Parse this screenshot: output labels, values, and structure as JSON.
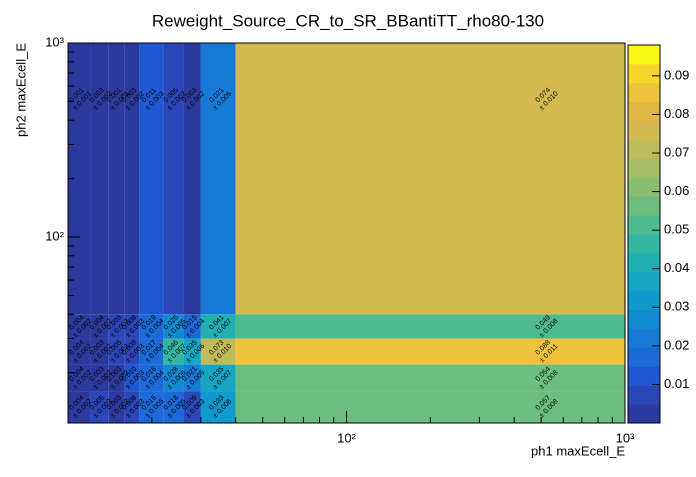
{
  "chart_data": {
    "type": "heatmap",
    "title": "Reweight_Source_CR_to_SR_BBantiTT_rho80-130",
    "x_label": "ph1 maxEcell_E",
    "y_label": "ph2 maxEcell_E",
    "xlog": true,
    "ylog": true,
    "xlim": [
      10,
      1000
    ],
    "ylim": [
      11,
      1000
    ],
    "xticks": [
      {
        "value": 100,
        "label": "10²"
      },
      {
        "value": 1000,
        "label": "10³"
      }
    ],
    "yticks": [
      {
        "value": 100,
        "label": "10²"
      },
      {
        "value": 1000,
        "label": "10³"
      }
    ],
    "xbins": [
      10,
      12,
      14,
      16,
      18,
      22,
      26,
      30,
      40,
      1000
    ],
    "ybins": [
      11,
      16,
      22,
      30,
      40,
      1000
    ],
    "z": [
      [
        0.004,
        0.005,
        0.003,
        0.008,
        0.015,
        0.018,
        0.009,
        0.033,
        0.057
      ],
      [
        0.004,
        0.003,
        0.003,
        0.01,
        0.016,
        0.028,
        0.021,
        0.035,
        0.054
      ],
      [
        0.004,
        0.003,
        0.005,
        0.008,
        0.017,
        0.046,
        0.035,
        0.073,
        0.088
      ],
      [
        0.004,
        0.004,
        0.009,
        0.008,
        0.019,
        0.026,
        0.015,
        0.041,
        0.049
      ],
      [
        0.001,
        0.003,
        0.001,
        0.003,
        0.011,
        0.005,
        0.003,
        0.021,
        0.074
      ]
    ],
    "value_labels": [
      [
        "0.004",
        "0.005",
        "0.003",
        "0.008",
        "0.015",
        "0.018",
        "0.009",
        "0.033",
        "0.057"
      ],
      [
        "0.004",
        "0.003",
        "0.003",
        "0.010",
        "0.016",
        "0.028",
        "0.021",
        "0.035",
        "0.054"
      ],
      [
        "0.004",
        "0.003",
        "0.005",
        "0.008",
        "0.017",
        "0.046",
        "0.035",
        "0.073",
        "0.088"
      ],
      [
        "0.004",
        "0.004",
        "0.009",
        "0.008",
        "0.019",
        "0.026",
        "0.015",
        "0.041",
        "0.049"
      ],
      [
        "0.001",
        "0.003",
        "0.001",
        "0.003",
        "0.011",
        "0.005",
        "0.003",
        "0.021",
        "0.074"
      ]
    ],
    "errors": [
      [
        0.002,
        0.003,
        0.002,
        0.003,
        0.005,
        0.005,
        0.003,
        0.006,
        0.008
      ],
      [
        0.002,
        0.002,
        0.002,
        0.003,
        0.004,
        0.006,
        0.005,
        0.007,
        0.008
      ],
      [
        0.002,
        0.002,
        0.003,
        0.003,
        0.004,
        0.007,
        0.006,
        0.01,
        0.011
      ],
      [
        0.002,
        0.002,
        0.003,
        0.003,
        0.004,
        0.005,
        0.004,
        0.007,
        0.008
      ],
      [
        0.001,
        0.002,
        0.001,
        0.002,
        0.003,
        0.002,
        0.002,
        0.005,
        0.01
      ]
    ],
    "error_labels": [
      [
        "± 0.002",
        "± 0.003",
        "± 0.002",
        "± 0.003",
        "± 0.005",
        "± 0.005",
        "± 0.003",
        "± 0.006",
        "± 0.008"
      ],
      [
        "± 0.002",
        "± 0.002",
        "± 0.002",
        "± 0.003",
        "± 0.004",
        "± 0.006",
        "± 0.005",
        "± 0.007",
        "± 0.008"
      ],
      [
        "± 0.002",
        "± 0.002",
        "± 0.003",
        "± 0.003",
        "± 0.004",
        "± 0.007",
        "± 0.006",
        "± 0.010",
        "± 0.011"
      ],
      [
        "± 0.002",
        "± 0.002",
        "± 0.003",
        "± 0.003",
        "± 0.004",
        "± 0.005",
        "± 0.004",
        "± 0.007",
        "± 0.008"
      ],
      [
        "± 0.001",
        "± 0.002",
        "± 0.001",
        "± 0.002",
        "± 0.003",
        "± 0.002",
        "± 0.002",
        "± 0.005",
        "± 0.010"
      ]
    ],
    "zlim": [
      0,
      0.098
    ],
    "zticks": [
      0.01,
      0.02,
      0.03,
      0.04,
      0.05,
      0.06,
      0.07,
      0.08,
      0.09
    ],
    "palette": [
      "#2c3a9e",
      "#2a46b8",
      "#1f58d2",
      "#1b6ad8",
      "#167ad6",
      "#128ad2",
      "#0f99cc",
      "#14a6c2",
      "#20b0b2",
      "#34b6a0",
      "#4fba8e",
      "#6cbd7e",
      "#8abe70",
      "#a5be64",
      "#bebb5a",
      "#d2b950",
      "#e2b946",
      "#efc23c",
      "#f6d62c",
      "#f9f614"
    ]
  }
}
